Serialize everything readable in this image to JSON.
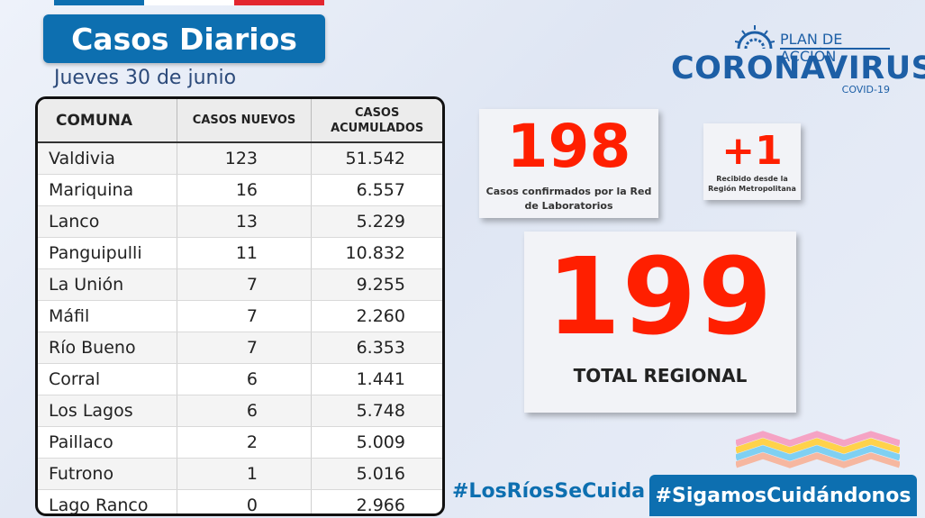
{
  "header": {
    "title": "Casos Diarios",
    "date": "Jueves 30 de junio",
    "top_stripe_colors": [
      "#0d6fb0",
      "#ffffff",
      "#e3262f"
    ]
  },
  "logo": {
    "plan": "PLAN DE ACCIÓN",
    "name": "CORONAVIRUS",
    "sub": "COVID-19",
    "color": "#1d5fa6"
  },
  "table": {
    "headers": {
      "comuna": "COMUNA",
      "nuevos": "CASOS NUEVOS",
      "acumulados": "CASOS ACUMULADOS"
    },
    "rows": [
      {
        "comuna": "Valdivia",
        "nuevos": "123",
        "acumulados": "51.542"
      },
      {
        "comuna": "Mariquina",
        "nuevos": "16",
        "acumulados": "6.557"
      },
      {
        "comuna": "Lanco",
        "nuevos": "13",
        "acumulados": "5.229"
      },
      {
        "comuna": "Panguipulli",
        "nuevos": "11",
        "acumulados": "10.832"
      },
      {
        "comuna": "La Unión",
        "nuevos": "7",
        "acumulados": "9.255"
      },
      {
        "comuna": "Máfil",
        "nuevos": "7",
        "acumulados": "2.260"
      },
      {
        "comuna": "Río Bueno",
        "nuevos": "7",
        "acumulados": "6.353"
      },
      {
        "comuna": "Corral",
        "nuevos": "6",
        "acumulados": "1.441"
      },
      {
        "comuna": "Los Lagos",
        "nuevos": "6",
        "acumulados": "5.748"
      },
      {
        "comuna": "Paillaco",
        "nuevos": "2",
        "acumulados": "5.009"
      },
      {
        "comuna": "Futrono",
        "nuevos": "1",
        "acumulados": "5.016"
      },
      {
        "comuna": "Lago Ranco",
        "nuevos": "0",
        "acumulados": "2.966"
      }
    ]
  },
  "stats": {
    "confirmed": {
      "value": "198",
      "caption": "Casos confirmados por la Red de Laboratorios"
    },
    "received": {
      "value": "+1",
      "caption": "Recibido desde la Región Metropolitana"
    },
    "total": {
      "value": "199",
      "caption": "TOTAL REGIONAL"
    },
    "accent": "#ff1f00"
  },
  "footer": {
    "hashtag1": "#LosRíosSeCuida",
    "hashtag2": "#SigamosCuidándonos"
  }
}
